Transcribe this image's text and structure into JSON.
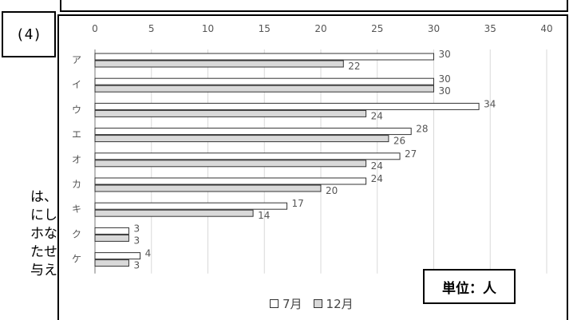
{
  "question_number": "(4)",
  "side_text": [
    "は、",
    "にし",
    "ホな",
    "たせ",
    "与え"
  ],
  "unit_label": "単位：人",
  "colors": {
    "july": "#ffffff",
    "december": "#d9d9d9",
    "stroke": "#333333",
    "grid": "#d9d9d9"
  },
  "chart_data": {
    "type": "bar",
    "orientation": "horizontal",
    "categories": [
      "ア",
      "イ",
      "ウ",
      "エ",
      "オ",
      "カ",
      "キ",
      "ク",
      "ケ"
    ],
    "series": [
      {
        "name": "7月",
        "values": [
          30,
          30,
          34,
          28,
          27,
          24,
          17,
          3,
          4
        ]
      },
      {
        "name": "12月",
        "values": [
          22,
          30,
          24,
          26,
          24,
          20,
          14,
          3,
          3
        ]
      }
    ],
    "xticks": [
      "0",
      "5",
      "10",
      "15",
      "20",
      "25",
      "30",
      "35",
      "40"
    ],
    "xlim": [
      0,
      40
    ],
    "grid": true,
    "legend": "bottom",
    "title": "",
    "xlabel": "",
    "ylabel": ""
  }
}
